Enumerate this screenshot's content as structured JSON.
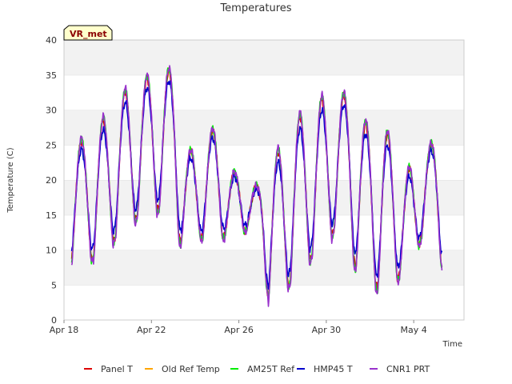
{
  "chart_data": {
    "type": "line",
    "title": "Temperatures",
    "xlabel": "Time",
    "ylabel": "Temperature (C)",
    "ylim": [
      0,
      40
    ],
    "yticks": [
      0,
      5,
      10,
      15,
      20,
      25,
      30,
      35,
      40
    ],
    "xlim_days": [
      0,
      18.3
    ],
    "xticks": [
      {
        "day": 0,
        "label": "Apr 18"
      },
      {
        "day": 4,
        "label": "Apr 22"
      },
      {
        "day": 8,
        "label": "Apr 26"
      },
      {
        "day": 12,
        "label": "Apr 30"
      },
      {
        "day": 16,
        "label": "May 4"
      }
    ],
    "badge": "VR_met",
    "grid": "horizontal alternating bands",
    "legend_position": "bottom",
    "series": [
      {
        "name": "Panel T",
        "color": "#dd0000",
        "offset": 0,
        "amp_scale": 1.0
      },
      {
        "name": "Old Ref Temp",
        "color": "#ffa500",
        "offset": 0,
        "amp_scale": 1.0,
        "empty": true
      },
      {
        "name": "AM25T Ref",
        "color": "#00ee00",
        "offset": 0.05,
        "amp_scale": 1.04
      },
      {
        "name": "HMP45 T",
        "color": "#0000cc",
        "offset": 0.12,
        "amp_scale": 0.85
      },
      {
        "name": "CNR1 PRT",
        "color": "#9932cc",
        "offset": -0.02,
        "amp_scale": 1.06
      }
    ],
    "daily_profile": {
      "start_day": 0.35,
      "end_day": 17.3,
      "days": [
        {
          "min": 8.5,
          "max": 25.5
        },
        {
          "min": 9.0,
          "max": 28.5
        },
        {
          "min": 12.0,
          "max": 32.5
        },
        {
          "min": 15.0,
          "max": 34.5
        },
        {
          "min": 16.0,
          "max": 35.5
        },
        {
          "min": 11.0,
          "max": 24.0
        },
        {
          "min": 12.0,
          "max": 27.0
        },
        {
          "min": 12.0,
          "max": 21.0
        },
        {
          "min": 13.0,
          "max": 19.0
        },
        {
          "min": 3.0,
          "max": 24.0
        },
        {
          "min": 5.5,
          "max": 29.0
        },
        {
          "min": 9.5,
          "max": 31.5
        },
        {
          "min": 13.0,
          "max": 32.0
        },
        {
          "min": 7.5,
          "max": 28.0
        },
        {
          "min": 4.5,
          "max": 26.5
        },
        {
          "min": 6.5,
          "max": 21.5
        },
        {
          "min": 12.0,
          "max": 25.0
        },
        {
          "min": 7.0,
          "max": 9.0
        }
      ]
    }
  }
}
